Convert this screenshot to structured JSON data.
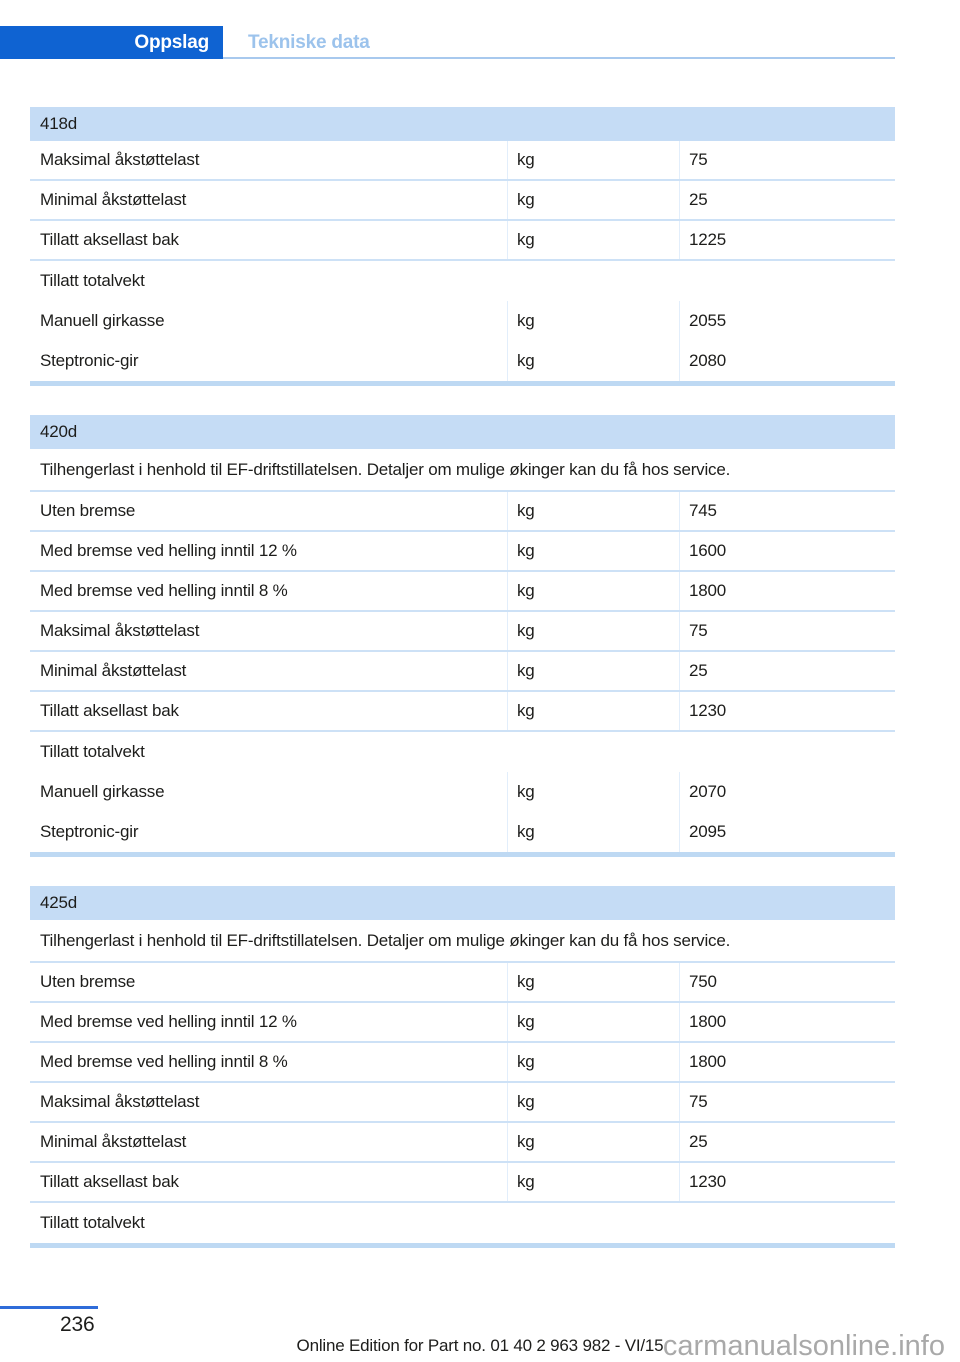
{
  "header": {
    "tab_label": "Oppslag",
    "section_title": "Tekniske data"
  },
  "tables": [
    {
      "model": "418d",
      "intro": null,
      "rows": [
        {
          "label": "Maksimal åkstøttelast",
          "unit": "kg",
          "value": "75",
          "sep": true
        },
        {
          "label": "Minimal åkstøttelast",
          "unit": "kg",
          "value": "25",
          "sep": true
        },
        {
          "label": "Tillatt aksellast bak",
          "unit": "kg",
          "value": "1225",
          "sep": true
        },
        {
          "label": "Tillatt totalvekt",
          "unit": "",
          "value": "",
          "sep": false
        },
        {
          "label": "Manuell girkasse",
          "unit": "kg",
          "value": "2055",
          "sep": false
        },
        {
          "label": "Steptronic-gir",
          "unit": "kg",
          "value": "2080",
          "sep": false
        }
      ]
    },
    {
      "model": "420d",
      "intro": "Tilhengerlast i henhold til EF-driftstillatelsen. Detaljer om mulige økinger kan du få hos service.",
      "rows": [
        {
          "label": "Uten bremse",
          "unit": "kg",
          "value": "745",
          "sep": true
        },
        {
          "label": "Med bremse ved helling inntil 12 %",
          "unit": "kg",
          "value": "1600",
          "sep": true
        },
        {
          "label": "Med bremse ved helling inntil 8 %",
          "unit": "kg",
          "value": "1800",
          "sep": true
        },
        {
          "label": "Maksimal åkstøttelast",
          "unit": "kg",
          "value": "75",
          "sep": true
        },
        {
          "label": "Minimal åkstøttelast",
          "unit": "kg",
          "value": "25",
          "sep": true
        },
        {
          "label": "Tillatt aksellast bak",
          "unit": "kg",
          "value": "1230",
          "sep": true
        },
        {
          "label": "Tillatt totalvekt",
          "unit": "",
          "value": "",
          "sep": false
        },
        {
          "label": "Manuell girkasse",
          "unit": "kg",
          "value": "2070",
          "sep": false
        },
        {
          "label": "Steptronic-gir",
          "unit": "kg",
          "value": "2095",
          "sep": false
        }
      ]
    },
    {
      "model": "425d",
      "intro": "Tilhengerlast i henhold til EF-driftstillatelsen. Detaljer om mulige økinger kan du få hos service.",
      "rows": [
        {
          "label": "Uten bremse",
          "unit": "kg",
          "value": "750",
          "sep": true
        },
        {
          "label": "Med bremse ved helling inntil 12 %",
          "unit": "kg",
          "value": "1800",
          "sep": true
        },
        {
          "label": "Med bremse ved helling inntil 8 %",
          "unit": "kg",
          "value": "1800",
          "sep": true
        },
        {
          "label": "Maksimal åkstøttelast",
          "unit": "kg",
          "value": "75",
          "sep": true
        },
        {
          "label": "Minimal åkstøttelast",
          "unit": "kg",
          "value": "25",
          "sep": true
        },
        {
          "label": "Tillatt aksellast bak",
          "unit": "kg",
          "value": "1230",
          "sep": true
        },
        {
          "label": "Tillatt totalvekt",
          "unit": "",
          "value": "",
          "sep": false
        }
      ]
    }
  ],
  "footer": {
    "page_number": "236",
    "edition": "Online Edition for Part no. 01 40 2 963 982 - VI/15",
    "watermark": "carmanualsonline.info"
  },
  "colors": {
    "accent_blue": "#0f63d2",
    "inactive_tab_text": "#9cc3ec",
    "table_header_bg": "#c5dcf5",
    "row_separator": "#cde1f6",
    "table_end_bar": "#bed9f3",
    "footer_page_line": "#2f6cd9",
    "watermark_gray": "#9b9b9b",
    "text": "#1d1d1b"
  }
}
